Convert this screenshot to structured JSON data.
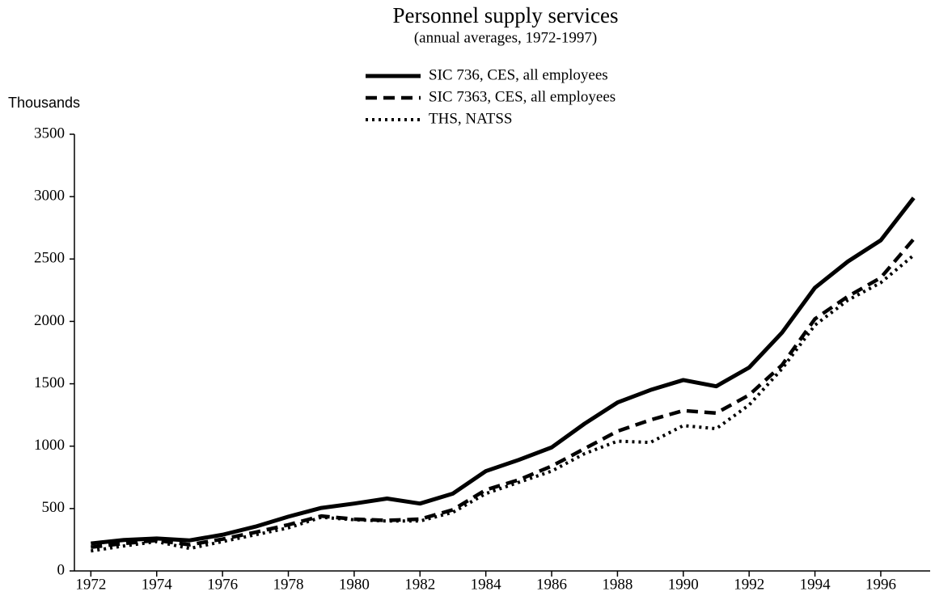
{
  "chart_data": {
    "type": "line",
    "title": "Personnel supply services",
    "subtitle": "(annual averages, 1972-1997)",
    "y_label": "Thousands",
    "x": [
      1972,
      1973,
      1974,
      1975,
      1976,
      1977,
      1978,
      1979,
      1980,
      1981,
      1982,
      1983,
      1984,
      1985,
      1986,
      1987,
      1988,
      1989,
      1990,
      1991,
      1992,
      1993,
      1994,
      1995,
      1996,
      1997
    ],
    "series": [
      {
        "name": "SIC 736, CES, all employees",
        "color": "#000000",
        "line_style": "solid",
        "values": [
          220,
          248,
          260,
          245,
          290,
          355,
          435,
          505,
          540,
          580,
          540,
          620,
          800,
          890,
          990,
          1180,
          1350,
          1450,
          1530,
          1480,
          1630,
          1910,
          2270,
          2480,
          2650,
          2990
        ]
      },
      {
        "name": "SIC 7363, CES, all employees",
        "color": "#000000",
        "line_style": "dashed",
        "values": [
          190,
          220,
          245,
          210,
          255,
          310,
          370,
          440,
          415,
          405,
          415,
          490,
          650,
          730,
          840,
          980,
          1120,
          1210,
          1285,
          1265,
          1410,
          1650,
          2020,
          2200,
          2350,
          2660
        ]
      },
      {
        "name": "THS, NATSS",
        "color": "#000000",
        "line_style": "dotted",
        "values": [
          160,
          200,
          235,
          180,
          235,
          290,
          345,
          430,
          410,
          400,
          400,
          470,
          620,
          710,
          800,
          940,
          1040,
          1030,
          1165,
          1140,
          1330,
          1620,
          1970,
          2170,
          2310,
          2530
        ]
      }
    ],
    "xlim": [
      1971.5,
      1997.5
    ],
    "xticks": [
      1972,
      1974,
      1976,
      1978,
      1980,
      1982,
      1984,
      1986,
      1988,
      1990,
      1992,
      1994,
      1996
    ],
    "ylim": [
      0,
      3500
    ],
    "yticks": [
      0,
      500,
      1000,
      1500,
      2000,
      2500,
      3000,
      3500
    ],
    "grid": false
  }
}
